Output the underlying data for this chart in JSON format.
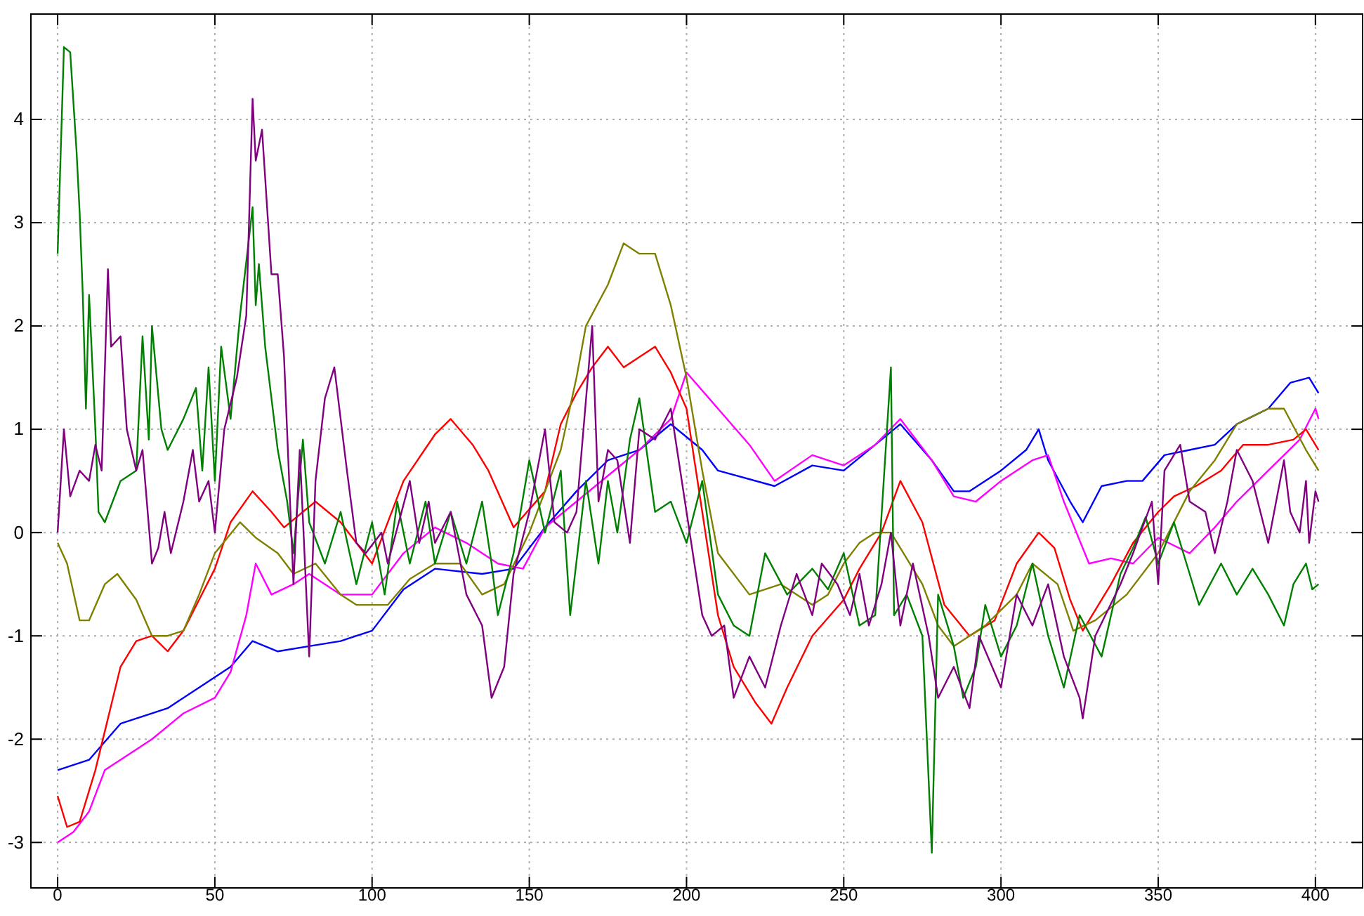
{
  "chart_data": {
    "type": "line",
    "xlim": [
      -8.5,
      415
    ],
    "ylim": [
      -3.44,
      5.02
    ],
    "xticks": [
      0,
      50,
      100,
      150,
      200,
      250,
      300,
      350,
      400
    ],
    "yticks": [
      -3,
      -2,
      -1,
      0,
      1,
      2,
      3,
      4
    ],
    "grid": true,
    "marker": "none",
    "line_style": "solid",
    "series": [
      {
        "color": "#0000ff",
        "x": [
          0,
          10,
          20,
          35,
          45,
          55,
          62,
          70,
          80,
          90,
          100,
          110,
          120,
          135,
          145,
          155,
          165,
          175,
          185,
          195,
          205,
          210,
          228,
          240,
          250,
          260,
          268,
          278,
          285,
          290,
          300,
          308,
          312,
          315,
          322,
          326,
          332,
          340,
          345,
          352,
          360,
          368,
          375,
          385,
          392,
          398,
          401
        ],
        "values": [
          -2.3,
          -2.2,
          -1.85,
          -1.7,
          -1.5,
          -1.3,
          -1.05,
          -1.15,
          -1.1,
          -1.05,
          -0.95,
          -0.55,
          -0.35,
          -0.4,
          -0.35,
          0.05,
          0.4,
          0.7,
          0.8,
          1.05,
          0.8,
          0.6,
          0.45,
          0.65,
          0.6,
          0.85,
          1.05,
          0.7,
          0.4,
          0.4,
          0.6,
          0.8,
          1.0,
          0.7,
          0.3,
          0.1,
          0.45,
          0.5,
          0.5,
          0.75,
          0.8,
          0.85,
          1.05,
          1.2,
          1.45,
          1.5,
          1.35
        ]
      },
      {
        "color": "#ff00ff",
        "x": [
          0,
          5,
          10,
          15,
          25,
          30,
          40,
          50,
          55,
          60,
          63,
          68,
          75,
          80,
          90,
          100,
          110,
          120,
          130,
          140,
          148,
          155,
          165,
          175,
          185,
          195,
          200,
          210,
          220,
          228,
          240,
          250,
          260,
          268,
          278,
          285,
          292,
          300,
          310,
          315,
          320,
          328,
          335,
          342,
          350,
          360,
          368,
          375,
          385,
          395,
          400,
          401
        ],
        "values": [
          -3.0,
          -2.9,
          -2.7,
          -2.3,
          -2.1,
          -2.0,
          -1.75,
          -1.6,
          -1.35,
          -0.8,
          -0.3,
          -0.6,
          -0.5,
          -0.4,
          -0.6,
          -0.6,
          -0.2,
          0.05,
          -0.1,
          -0.3,
          -0.35,
          0.05,
          0.3,
          0.55,
          0.8,
          1.1,
          1.55,
          1.2,
          0.85,
          0.5,
          0.75,
          0.65,
          0.85,
          1.1,
          0.7,
          0.35,
          0.3,
          0.5,
          0.7,
          0.75,
          0.3,
          -0.3,
          -0.25,
          -0.3,
          -0.05,
          -0.2,
          0.05,
          0.3,
          0.6,
          0.9,
          1.2,
          1.1
        ]
      },
      {
        "color": "#ff0000",
        "x": [
          0,
          3,
          7,
          12,
          16,
          20,
          25,
          30,
          35,
          40,
          45,
          50,
          55,
          62,
          68,
          72,
          82,
          90,
          100,
          110,
          120,
          125,
          132,
          137,
          145,
          155,
          160,
          165,
          170,
          175,
          180,
          185,
          190,
          195,
          200,
          205,
          210,
          215,
          222,
          227,
          232,
          240,
          250,
          255,
          262,
          268,
          275,
          282,
          290,
          298,
          305,
          312,
          317,
          322,
          326,
          335,
          342,
          350,
          355,
          362,
          370,
          377,
          385,
          393,
          397,
          401
        ],
        "values": [
          -2.55,
          -2.85,
          -2.8,
          -2.3,
          -1.8,
          -1.3,
          -1.05,
          -1.0,
          -1.15,
          -0.95,
          -0.65,
          -0.35,
          0.1,
          0.4,
          0.2,
          0.05,
          0.3,
          0.1,
          -0.3,
          0.5,
          0.95,
          1.1,
          0.85,
          0.6,
          0.05,
          0.4,
          1.05,
          1.35,
          1.6,
          1.8,
          1.6,
          1.7,
          1.8,
          1.55,
          1.2,
          0.2,
          -0.8,
          -1.3,
          -1.65,
          -1.85,
          -1.5,
          -1.0,
          -0.65,
          -0.35,
          0.0,
          0.5,
          0.1,
          -0.7,
          -1.0,
          -0.85,
          -0.3,
          0.0,
          -0.15,
          -0.65,
          -0.95,
          -0.5,
          -0.1,
          0.2,
          0.35,
          0.45,
          0.6,
          0.85,
          0.85,
          0.9,
          1.0,
          0.8
        ]
      },
      {
        "color": "#808000",
        "x": [
          0,
          3,
          7,
          10,
          15,
          19,
          25,
          30,
          35,
          40,
          45,
          50,
          58,
          63,
          70,
          75,
          82,
          90,
          95,
          105,
          112,
          120,
          128,
          135,
          142,
          150,
          160,
          165,
          168,
          175,
          180,
          185,
          190,
          195,
          200,
          205,
          210,
          220,
          230,
          240,
          245,
          250,
          255,
          260,
          265,
          275,
          280,
          285,
          295,
          305,
          310,
          318,
          323,
          330,
          340,
          350,
          360,
          368,
          375,
          385,
          390,
          397,
          401
        ],
        "values": [
          -0.1,
          -0.3,
          -0.85,
          -0.85,
          -0.5,
          -0.4,
          -0.65,
          -1.0,
          -1.0,
          -0.95,
          -0.6,
          -0.2,
          0.1,
          -0.05,
          -0.2,
          -0.4,
          -0.3,
          -0.6,
          -0.7,
          -0.7,
          -0.45,
          -0.3,
          -0.3,
          -0.6,
          -0.5,
          0.0,
          0.8,
          1.5,
          2.0,
          2.4,
          2.8,
          2.7,
          2.7,
          2.2,
          1.5,
          0.6,
          -0.2,
          -0.6,
          -0.5,
          -0.7,
          -0.6,
          -0.3,
          -0.1,
          0.0,
          0.0,
          -0.5,
          -0.9,
          -1.1,
          -0.9,
          -0.6,
          -0.3,
          -0.5,
          -0.95,
          -0.85,
          -0.6,
          -0.2,
          0.4,
          0.7,
          1.05,
          1.2,
          1.2,
          0.8,
          0.6
        ]
      },
      {
        "color": "#008000",
        "x": [
          0,
          2,
          4,
          6,
          7,
          8,
          9,
          10,
          12,
          13,
          15,
          20,
          25,
          27,
          29,
          30,
          33,
          35,
          40,
          44,
          46,
          48,
          50,
          52,
          55,
          58,
          62,
          63,
          64,
          66,
          70,
          73,
          75,
          78,
          80,
          85,
          90,
          95,
          100,
          104,
          108,
          112,
          117,
          120,
          125,
          130,
          135,
          138,
          140,
          145,
          150,
          155,
          160,
          163,
          168,
          172,
          175,
          178,
          182,
          185,
          190,
          195,
          200,
          205,
          210,
          215,
          220,
          225,
          232,
          240,
          245,
          250,
          255,
          260,
          265,
          266,
          270,
          275,
          278,
          280,
          285,
          288,
          292,
          295,
          300,
          305,
          310,
          315,
          320,
          325,
          332,
          338,
          342,
          346,
          350,
          355,
          360,
          363,
          370,
          375,
          380,
          385,
          390,
          393,
          397,
          399,
          401
        ],
        "values": [
          2.7,
          4.7,
          4.65,
          3.7,
          3.1,
          2.3,
          1.2,
          2.3,
          1.0,
          0.2,
          0.1,
          0.5,
          0.6,
          1.9,
          0.9,
          2.0,
          1.0,
          0.8,
          1.1,
          1.4,
          0.6,
          1.6,
          0.5,
          1.8,
          1.1,
          2.1,
          3.15,
          2.2,
          2.6,
          1.8,
          0.8,
          0.3,
          -0.2,
          0.9,
          0.1,
          -0.3,
          0.2,
          -0.5,
          0.1,
          -0.6,
          0.3,
          -0.3,
          0.3,
          -0.3,
          0.2,
          -0.3,
          0.3,
          -0.3,
          -0.8,
          -0.2,
          0.7,
          0.0,
          0.6,
          -0.8,
          0.5,
          -0.3,
          0.5,
          0.0,
          0.9,
          1.3,
          0.2,
          0.3,
          -0.1,
          0.5,
          -0.6,
          -0.9,
          -1.0,
          -0.2,
          -0.6,
          -0.35,
          -0.55,
          -0.2,
          -0.9,
          -0.8,
          1.6,
          -0.8,
          -0.6,
          -1.0,
          -3.1,
          -0.6,
          -1.1,
          -1.6,
          -1.3,
          -0.7,
          -1.2,
          -0.9,
          -0.3,
          -1.0,
          -1.5,
          -0.8,
          -1.2,
          -0.4,
          -0.15,
          0.15,
          -0.3,
          0.1,
          -0.4,
          -0.7,
          -0.3,
          -0.6,
          -0.35,
          -0.6,
          -0.9,
          -0.5,
          -0.3,
          -0.55,
          -0.5
        ]
      },
      {
        "color": "#800080",
        "x": [
          0,
          2,
          4,
          7,
          10,
          12,
          14,
          16,
          17,
          20,
          22,
          25,
          27,
          30,
          32,
          34,
          36,
          40,
          43,
          45,
          48,
          50,
          53,
          57,
          60,
          62,
          63,
          65,
          68,
          70,
          72,
          75,
          77,
          80,
          82,
          85,
          88,
          92,
          95,
          98,
          103,
          105,
          112,
          115,
          118,
          120,
          125,
          130,
          135,
          138,
          142,
          145,
          150,
          155,
          158,
          162,
          165,
          170,
          172,
          175,
          178,
          182,
          185,
          190,
          195,
          200,
          205,
          208,
          212,
          215,
          220,
          225,
          230,
          235,
          240,
          243,
          248,
          252,
          255,
          258,
          262,
          265,
          268,
          272,
          277,
          280,
          285,
          290,
          293,
          300,
          305,
          310,
          315,
          320,
          325,
          326,
          330,
          338,
          342,
          348,
          350,
          352,
          357,
          360,
          365,
          368,
          372,
          375,
          380,
          385,
          390,
          392,
          395,
          397,
          398,
          400,
          401
        ],
        "values": [
          0.0,
          1.0,
          0.35,
          0.6,
          0.5,
          0.85,
          0.6,
          2.55,
          1.8,
          1.9,
          1.0,
          0.6,
          0.8,
          -0.3,
          -0.15,
          0.2,
          -0.2,
          0.3,
          0.8,
          0.3,
          0.5,
          0.0,
          1.0,
          1.5,
          2.1,
          4.2,
          3.6,
          3.9,
          2.5,
          2.5,
          1.7,
          -0.5,
          0.8,
          -1.2,
          0.5,
          1.3,
          1.6,
          0.6,
          -0.1,
          -0.2,
          0.0,
          -0.3,
          0.5,
          -0.1,
          0.3,
          -0.1,
          0.2,
          -0.6,
          -0.9,
          -1.6,
          -1.3,
          -0.4,
          0.2,
          1.0,
          0.1,
          0.0,
          0.2,
          2.0,
          0.3,
          0.8,
          0.7,
          -0.1,
          1.0,
          0.9,
          1.2,
          0.2,
          -0.8,
          -1.0,
          -0.9,
          -1.6,
          -1.2,
          -1.5,
          -0.9,
          -0.4,
          -0.8,
          -0.3,
          -0.5,
          -0.8,
          -0.4,
          -0.9,
          -0.5,
          0.0,
          -0.9,
          -0.3,
          -1.0,
          -1.6,
          -1.3,
          -1.7,
          -1.0,
          -1.5,
          -0.6,
          -0.9,
          -0.5,
          -1.2,
          -1.6,
          -1.8,
          -1.0,
          -0.5,
          -0.2,
          0.3,
          -0.5,
          0.6,
          0.85,
          0.3,
          0.2,
          -0.2,
          0.3,
          0.8,
          0.5,
          -0.1,
          0.7,
          0.2,
          0.0,
          0.5,
          -0.1,
          0.4,
          0.3
        ]
      }
    ]
  }
}
